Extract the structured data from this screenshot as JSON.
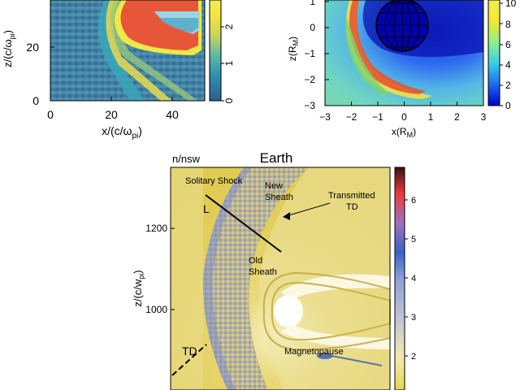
{
  "panel_a": {
    "x_axis_label": "x/(c/ω",
    "x_axis_label_sub": "pi",
    "x_axis_label_end": ")",
    "y_axis_label": "z/(c/ω",
    "y_axis_label_sub": "pi",
    "y_axis_label_end": ")",
    "x_ticks": [
      "0",
      "20",
      "40"
    ],
    "y_ticks": [
      "0",
      "20"
    ],
    "colorbar_ticks": [
      "0",
      "1",
      "2"
    ]
  },
  "panel_b": {
    "x_axis_label": "x(R",
    "x_axis_label_sub": "M",
    "x_axis_label_end": ")",
    "y_axis_label": "z(R",
    "y_axis_label_sub": "M",
    "y_axis_label_end": ")",
    "x_ticks": [
      "−3",
      "−2",
      "−1",
      "0",
      "1",
      "2",
      "3"
    ],
    "y_ticks": [
      "1",
      "0",
      "−1",
      "−2",
      "−3"
    ],
    "colorbar_ticks": [
      "10",
      "8",
      "6",
      "4",
      "2",
      "0"
    ]
  },
  "panel_c": {
    "title": "Earth",
    "colorbar_title": "n/nsw",
    "y_axis_label": "z/(c/w",
    "y_axis_label_sub": "pi",
    "y_axis_label_end": ")",
    "y_ticks": [
      "1200",
      "1000"
    ],
    "colorbar_ticks": [
      "6",
      "5",
      "4",
      "3",
      "2"
    ],
    "annotations": {
      "solitary_shock": "Solitary Shock",
      "new_sheath_1": "New",
      "new_sheath_2": "Sheath",
      "transmitted_td_1": "Transmitted",
      "transmitted_td_2": "TD",
      "line_label": "L",
      "old_sheath_1": "Old",
      "old_sheath_2": "Sheath",
      "td_label": "TD",
      "magnetopause": "Magnetopause"
    }
  }
}
